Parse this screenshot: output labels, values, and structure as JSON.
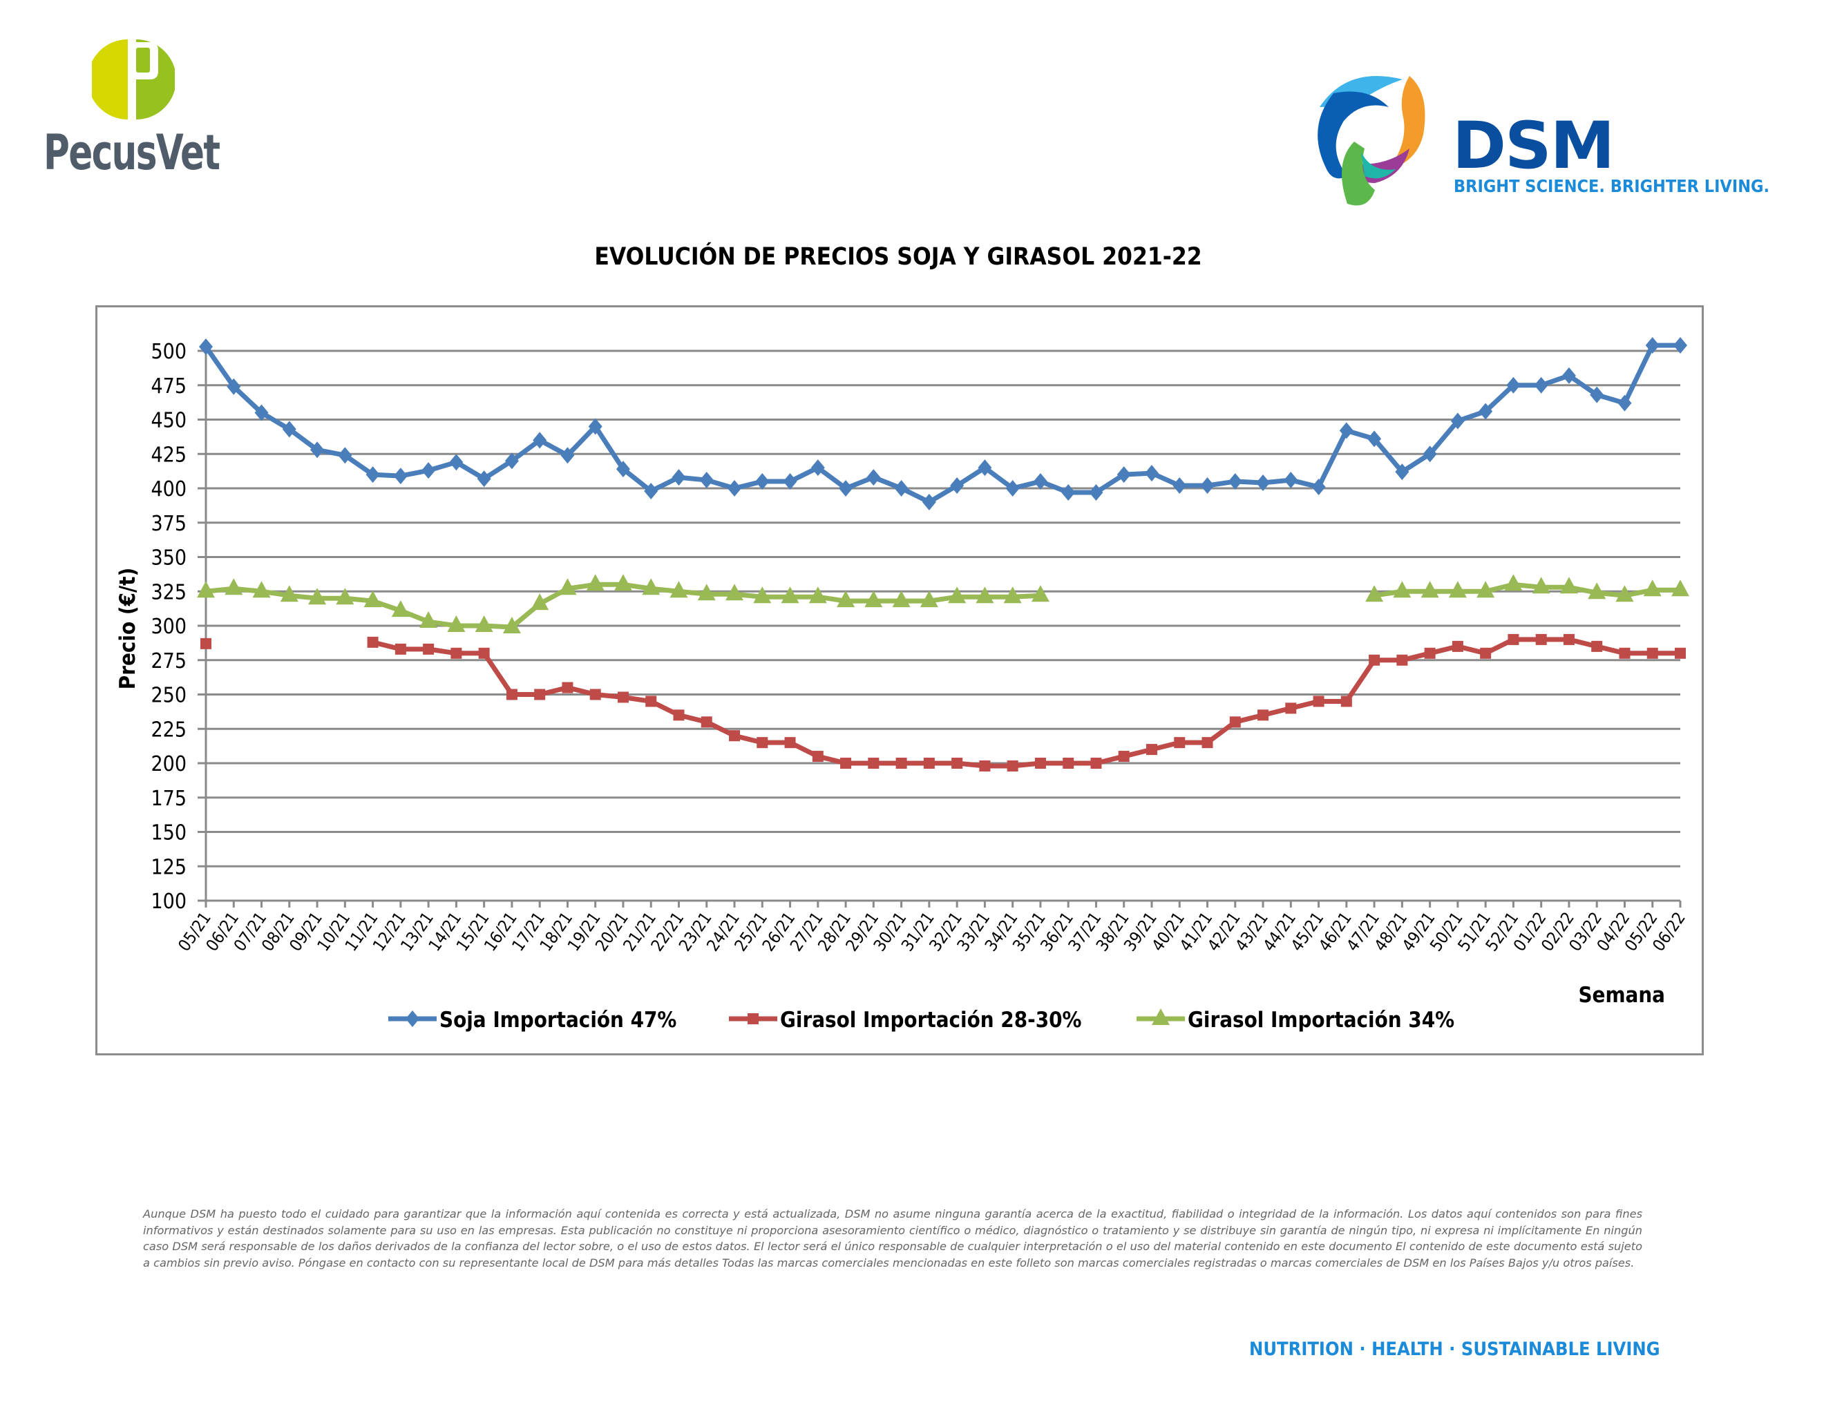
{
  "header": {
    "left_logo": {
      "name": "PecusVet",
      "letter": "P",
      "colors": {
        "light": "#d4d700",
        "dark": "#96c11f",
        "text": "#505c6a"
      }
    },
    "right_logo": {
      "name": "DSM",
      "tagline": "BRIGHT SCIENCE. BRIGHTER LIVING.",
      "colors": {
        "word": "#0a4ea0",
        "tagline": "#1b8ad8"
      }
    }
  },
  "chart_data": {
    "type": "line",
    "title": "EVOLUCIÓN DE PRECIOS SOJA Y GIRASOL 2021-22",
    "xlabel": "Semana",
    "ylabel": "Precio (€/t)",
    "ylim": [
      100,
      500
    ],
    "yticks": [
      100,
      125,
      150,
      175,
      200,
      225,
      250,
      275,
      300,
      325,
      350,
      375,
      400,
      425,
      450,
      475,
      500
    ],
    "grid": true,
    "legend_position": "bottom",
    "categories": [
      "05/21",
      "06/21",
      "07/21",
      "08/21",
      "09/21",
      "10/21",
      "11/21",
      "12/21",
      "13/21",
      "14/21",
      "15/21",
      "16/21",
      "17/21",
      "18/21",
      "19/21",
      "20/21",
      "21/21",
      "22/21",
      "23/21",
      "24/21",
      "25/21",
      "26/21",
      "27/21",
      "28/21",
      "29/21",
      "30/21",
      "31/21",
      "32/21",
      "33/21",
      "34/21",
      "35/21",
      "36/21",
      "37/21",
      "38/21",
      "39/21",
      "40/21",
      "41/21",
      "42/21",
      "43/21",
      "44/21",
      "45/21",
      "46/21",
      "47/21",
      "48/21",
      "49/21",
      "50/21",
      "51/21",
      "52/21",
      "01/22",
      "02/22",
      "03/22",
      "04/22",
      "05/22",
      "06/22"
    ],
    "series": [
      {
        "name": "Soja Importación 47%",
        "color": "#4a7ebb",
        "marker": "diamond",
        "values": [
          503,
          474,
          455,
          443,
          428,
          424,
          410,
          409,
          413,
          419,
          407,
          420,
          435,
          424,
          445,
          414,
          398,
          408,
          406,
          400,
          405,
          405,
          415,
          400,
          408,
          400,
          390,
          402,
          415,
          400,
          405,
          397,
          397,
          410,
          411,
          402,
          402,
          405,
          404,
          406,
          401,
          442,
          436,
          412,
          425,
          449,
          456,
          475,
          475,
          482,
          468,
          462,
          504,
          504
        ]
      },
      {
        "name": "Girasol Importación 28-30%",
        "color": "#be4b48",
        "marker": "square",
        "values": [
          287,
          null,
          null,
          null,
          null,
          null,
          288,
          283,
          283,
          280,
          280,
          250,
          250,
          255,
          250,
          248,
          245,
          235,
          230,
          220,
          215,
          215,
          205,
          200,
          200,
          200,
          200,
          200,
          198,
          198,
          200,
          200,
          200,
          205,
          210,
          215,
          215,
          230,
          235,
          240,
          245,
          245,
          275,
          275,
          280,
          285,
          280,
          290,
          290,
          290,
          285,
          280,
          280,
          280
        ]
      },
      {
        "name": "Girasol Importación 34%",
        "color": "#98b954",
        "marker": "triangle",
        "values": [
          325,
          327,
          325,
          322,
          320,
          320,
          318,
          311,
          303,
          300,
          300,
          299,
          316,
          327,
          330,
          330,
          327,
          325,
          323,
          323,
          321,
          321,
          321,
          318,
          318,
          318,
          318,
          321,
          321,
          321,
          322,
          null,
          null,
          null,
          null,
          null,
          null,
          null,
          null,
          null,
          null,
          null,
          322,
          325,
          325,
          325,
          325,
          330,
          328,
          328,
          324,
          322,
          326,
          326
        ]
      }
    ]
  },
  "disclaimer": "Aunque DSM ha puesto todo el cuidado para garantizar que la información aquí contenida es correcta y está actualizada, DSM no asume ninguna garantía acerca de la exactitud, fiabilidad o integridad de la información. Los datos aquí contenidos son para fines informativos y están destinados solamente para su uso en las empresas. Esta publicación no constituye ni proporciona asesoramiento científico o médico, diagnóstico o tratamiento y se distribuye sin garantía de ningún tipo, ni expresa ni implícitamente En ningún caso DSM será responsable de los daños derivados de la confianza del lector sobre, o el uso de estos datos. El lector será el único responsable de cualquier interpretación o el uso del material contenido en este documento El contenido de este documento está sujeto a cambios sin previo aviso. Póngase en contacto con su representante local de DSM para más detalles Todas las marcas comerciales mencionadas en este folleto son marcas comerciales registradas o marcas comerciales de DSM en los Países Bajos y/u otros países.",
  "footer": {
    "tagline": "NUTRITION  ·  HEALTH  ·  SUSTAINABLE LIVING"
  }
}
